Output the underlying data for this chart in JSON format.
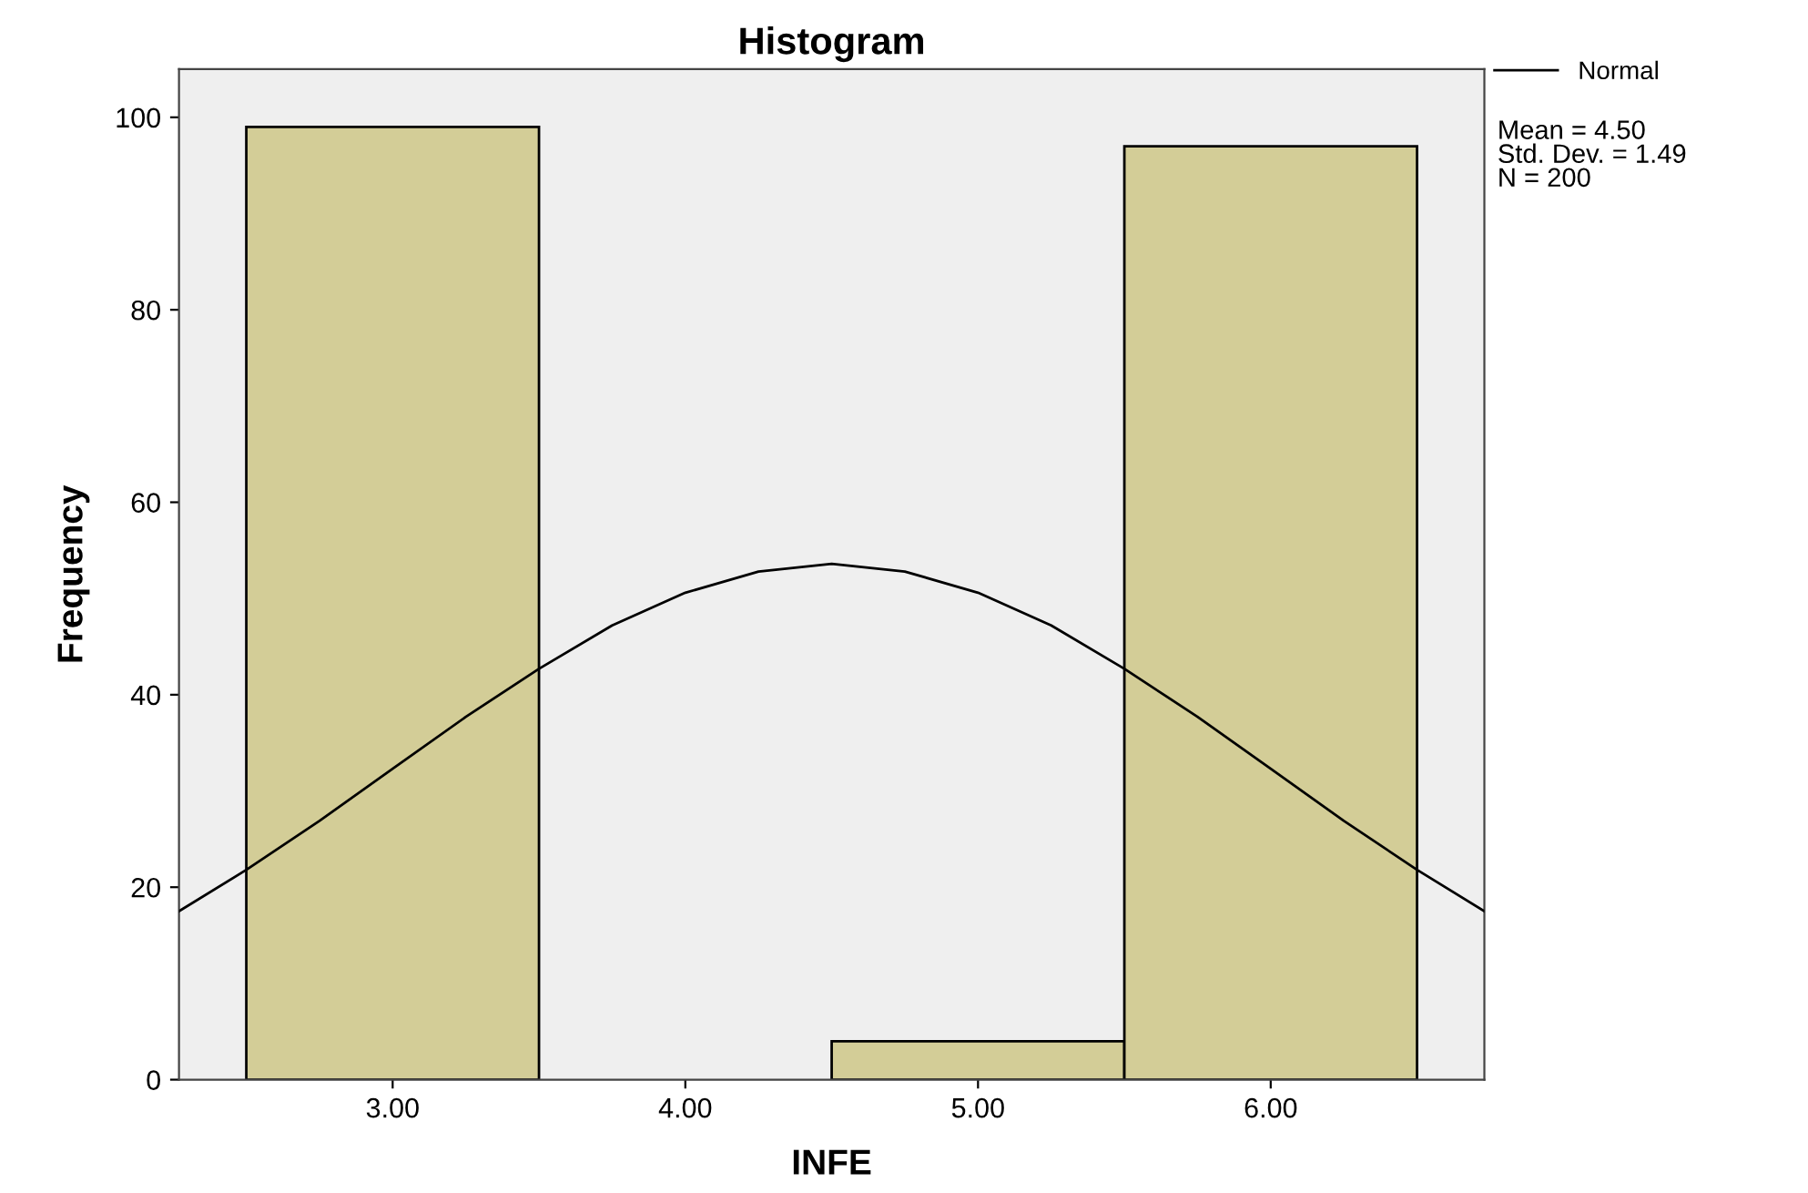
{
  "chart_data": {
    "type": "histogram",
    "title": "Histogram",
    "xlabel": "INFE",
    "ylabel": "Frequency",
    "series": [
      {
        "bins": [
          2.5,
          3.5,
          4.5,
          5.5,
          6.5
        ],
        "values": [
          99,
          0,
          4,
          97
        ],
        "color": "#d3cd97"
      },
      {
        "type": "line",
        "name": "Normal",
        "color": "#000000",
        "x": [
          2.27,
          2.5,
          2.75,
          3.0,
          3.25,
          3.5,
          3.75,
          4.0,
          4.25,
          4.5,
          4.75,
          5.0,
          5.25,
          5.5,
          5.75,
          6.0,
          6.25,
          6.5,
          6.73
        ],
        "values": [
          17.5,
          21.8,
          26.9,
          32.3,
          37.7,
          42.7,
          47.2,
          50.6,
          52.8,
          53.6,
          52.8,
          50.6,
          47.2,
          42.7,
          37.7,
          32.3,
          26.9,
          21.8,
          17.5
        ]
      }
    ],
    "xlim": [
      2.27,
      6.73
    ],
    "xticks": [
      {
        "value": 3,
        "label": "3.00"
      },
      {
        "value": 4,
        "label": "4.00"
      },
      {
        "value": 5,
        "label": "5.00"
      },
      {
        "value": 6,
        "label": "6.00"
      }
    ],
    "ylim": [
      0,
      105
    ],
    "yticks": [
      0,
      20,
      40,
      60,
      80,
      100
    ],
    "annotations": [
      "Mean = 4.50\nStd. Dev. = 1.49\nN = 200"
    ],
    "legend": "top right",
    "grid": false
  }
}
